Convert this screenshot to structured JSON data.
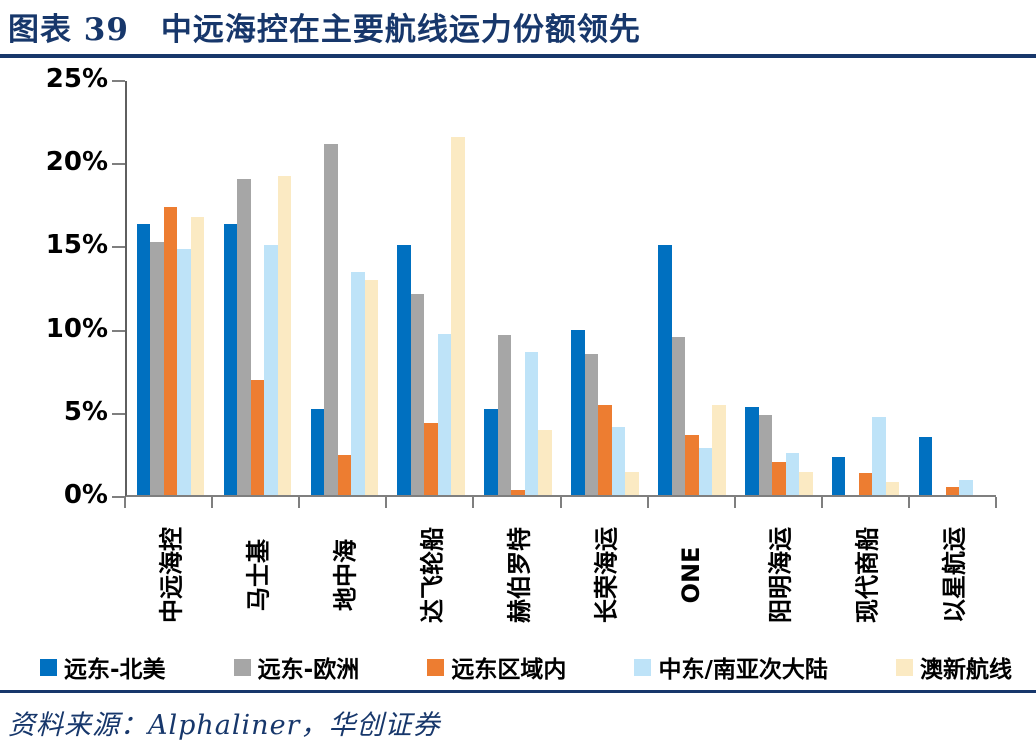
{
  "header": {
    "title": "图表 39　中远海控在主要航线运力份额领先"
  },
  "source": {
    "text": "资料来源：Alphaliner，华创证券"
  },
  "colors": {
    "accent_navy": "#17376B",
    "axis_gray": "#7f7f7f",
    "series_blue": "#0070C0",
    "series_gray": "#A6A6A6",
    "series_orange": "#ED7D31",
    "series_lightblue": "#BEE3F8",
    "series_yellow": "#FBEAC3"
  },
  "chart_data": {
    "type": "bar",
    "title": "中远海控在主要航线运力份额领先",
    "xlabel": "",
    "ylabel": "",
    "ylim": [
      0,
      25
    ],
    "y_ticks": [
      "0%",
      "5%",
      "10%",
      "15%",
      "20%",
      "25%"
    ],
    "grid": false,
    "legend_position": "bottom",
    "categories": [
      "中远海控",
      "马士基",
      "地中海",
      "达飞轮船",
      "赫伯罗特",
      "长荣海运",
      "ONE",
      "阳明海运",
      "现代商船",
      "以星航运"
    ],
    "series": [
      {
        "name": "远东-北美",
        "color": "#0070C0",
        "values": [
          16.3,
          16.3,
          5.2,
          15.0,
          5.2,
          9.9,
          15.0,
          5.3,
          2.3,
          3.5
        ]
      },
      {
        "name": "远东-欧洲",
        "color": "#A6A6A6",
        "values": [
          15.2,
          19.0,
          21.1,
          12.1,
          9.6,
          8.5,
          9.5,
          4.8,
          0,
          0
        ]
      },
      {
        "name": "远东区域内",
        "color": "#ED7D31",
        "values": [
          17.3,
          6.9,
          2.4,
          4.3,
          0.3,
          5.4,
          3.6,
          2.0,
          1.3,
          0.5
        ]
      },
      {
        "name": "中东/南亚次大陆",
        "color": "#BEE3F8",
        "values": [
          14.8,
          15.0,
          13.4,
          9.7,
          8.6,
          4.1,
          2.8,
          2.5,
          4.7,
          0.9
        ]
      },
      {
        "name": "澳新航线",
        "color": "#FBEAC3",
        "values": [
          16.7,
          19.2,
          12.9,
          21.5,
          3.9,
          1.4,
          5.4,
          1.4,
          0.8,
          0
        ]
      }
    ]
  }
}
